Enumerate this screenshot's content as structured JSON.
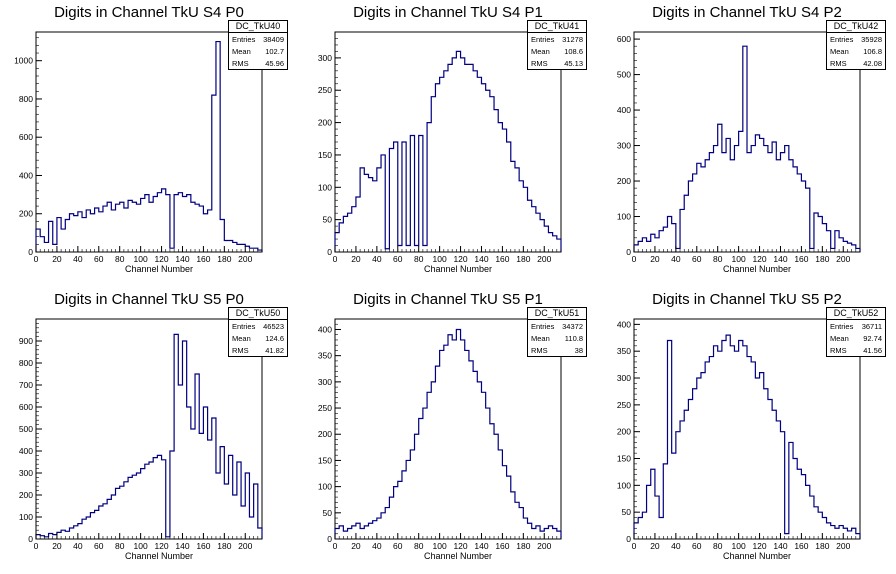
{
  "chart_data": [
    {
      "type": "area",
      "title": "Digits in Channel TkU S4 P0",
      "xlabel": "Channel Number",
      "ylabel": "",
      "histogram_name": "DC_TkU40",
      "stats": {
        "Entries": "38409",
        "Mean": "102.7",
        "RMS": "45.96"
      },
      "xlim": [
        0,
        216
      ],
      "ylim": [
        0,
        1150
      ],
      "yticks": [
        0,
        200,
        400,
        600,
        800,
        1000
      ],
      "xticks": [
        0,
        20,
        40,
        60,
        80,
        100,
        120,
        140,
        160,
        180,
        200
      ],
      "x": [
        0,
        4,
        8,
        12,
        16,
        20,
        24,
        28,
        32,
        36,
        40,
        44,
        48,
        52,
        56,
        60,
        64,
        68,
        72,
        76,
        80,
        84,
        88,
        92,
        96,
        100,
        104,
        108,
        112,
        116,
        120,
        124,
        128,
        132,
        136,
        140,
        144,
        148,
        152,
        156,
        160,
        164,
        168,
        172,
        176,
        180,
        184,
        188,
        192,
        196,
        200,
        204,
        208,
        212
      ],
      "values": [
        120,
        80,
        50,
        160,
        40,
        180,
        120,
        170,
        200,
        190,
        210,
        180,
        220,
        200,
        230,
        210,
        240,
        260,
        220,
        250,
        260,
        230,
        270,
        260,
        250,
        280,
        300,
        260,
        290,
        310,
        330,
        300,
        20,
        300,
        310,
        290,
        300,
        260,
        250,
        240,
        200,
        220,
        820,
        1100,
        170,
        60,
        60,
        50,
        40,
        40,
        30,
        20,
        20,
        10
      ],
      "color": "#000080"
    },
    {
      "type": "area",
      "title": "Digits in Channel TkU S4 P1",
      "xlabel": "Channel Number",
      "ylabel": "",
      "histogram_name": "DC_TkU41",
      "stats": {
        "Entries": "31278",
        "Mean": "108.6",
        "RMS": "45.13"
      },
      "xlim": [
        0,
        216
      ],
      "ylim": [
        0,
        340
      ],
      "yticks": [
        0,
        50,
        100,
        150,
        200,
        250,
        300
      ],
      "xticks": [
        0,
        20,
        40,
        60,
        80,
        100,
        120,
        140,
        160,
        180,
        200
      ],
      "x": [
        0,
        4,
        8,
        12,
        16,
        20,
        24,
        28,
        32,
        36,
        40,
        44,
        48,
        52,
        56,
        60,
        64,
        68,
        72,
        76,
        80,
        84,
        88,
        92,
        96,
        100,
        104,
        108,
        112,
        116,
        120,
        124,
        128,
        132,
        136,
        140,
        144,
        148,
        152,
        156,
        160,
        164,
        168,
        172,
        176,
        180,
        184,
        188,
        192,
        196,
        200,
        204,
        208,
        212
      ],
      "values": [
        30,
        45,
        55,
        60,
        70,
        85,
        130,
        120,
        115,
        110,
        130,
        150,
        5,
        160,
        170,
        10,
        170,
        10,
        180,
        10,
        180,
        10,
        200,
        240,
        260,
        270,
        280,
        290,
        300,
        310,
        300,
        290,
        290,
        280,
        270,
        260,
        250,
        240,
        220,
        200,
        190,
        170,
        140,
        130,
        110,
        100,
        80,
        70,
        60,
        50,
        40,
        30,
        25,
        20
      ],
      "color": "#000080"
    },
    {
      "type": "area",
      "title": "Digits in Channel TkU S4 P2",
      "xlabel": "Channel Number",
      "ylabel": "",
      "histogram_name": "DC_TkU42",
      "stats": {
        "Entries": "35928",
        "Mean": "106.8",
        "RMS": "42.08"
      },
      "xlim": [
        0,
        216
      ],
      "ylim": [
        0,
        620
      ],
      "yticks": [
        0,
        100,
        200,
        300,
        400,
        500,
        600
      ],
      "xticks": [
        0,
        20,
        40,
        60,
        80,
        100,
        120,
        140,
        160,
        180,
        200
      ],
      "x": [
        0,
        4,
        8,
        12,
        16,
        20,
        24,
        28,
        32,
        36,
        40,
        44,
        48,
        52,
        56,
        60,
        64,
        68,
        72,
        76,
        80,
        84,
        88,
        92,
        96,
        100,
        104,
        108,
        112,
        116,
        120,
        124,
        128,
        132,
        136,
        140,
        144,
        148,
        152,
        156,
        160,
        164,
        168,
        172,
        176,
        180,
        184,
        188,
        192,
        196,
        200,
        204,
        208,
        212
      ],
      "values": [
        20,
        30,
        40,
        30,
        50,
        40,
        60,
        70,
        100,
        80,
        10,
        120,
        160,
        200,
        220,
        250,
        240,
        260,
        280,
        300,
        360,
        280,
        320,
        260,
        300,
        340,
        580,
        280,
        300,
        330,
        320,
        300,
        280,
        310,
        260,
        280,
        300,
        260,
        240,
        220,
        200,
        180,
        10,
        110,
        100,
        80,
        60,
        10,
        60,
        40,
        30,
        25,
        20,
        10
      ],
      "color": "#000080"
    },
    {
      "type": "area",
      "title": "Digits in Channel TkU S5 P0",
      "xlabel": "Channel Number",
      "ylabel": "",
      "histogram_name": "DC_TkU50",
      "stats": {
        "Entries": "46523",
        "Mean": "124.6",
        "RMS": "41.82"
      },
      "xlim": [
        0,
        216
      ],
      "ylim": [
        0,
        1000
      ],
      "yticks": [
        0,
        100,
        200,
        300,
        400,
        500,
        600,
        700,
        800,
        900
      ],
      "xticks": [
        0,
        20,
        40,
        60,
        80,
        100,
        120,
        140,
        160,
        180,
        200
      ],
      "x": [
        0,
        4,
        8,
        12,
        16,
        20,
        24,
        28,
        32,
        36,
        40,
        44,
        48,
        52,
        56,
        60,
        64,
        68,
        72,
        76,
        80,
        84,
        88,
        92,
        96,
        100,
        104,
        108,
        112,
        116,
        120,
        124,
        128,
        132,
        136,
        140,
        144,
        148,
        152,
        156,
        160,
        164,
        168,
        172,
        176,
        180,
        184,
        188,
        192,
        196,
        200,
        204,
        208,
        212
      ],
      "values": [
        20,
        15,
        10,
        25,
        20,
        30,
        40,
        35,
        50,
        60,
        70,
        90,
        100,
        120,
        130,
        150,
        160,
        180,
        200,
        230,
        240,
        260,
        280,
        290,
        300,
        320,
        340,
        350,
        370,
        380,
        360,
        10,
        400,
        930,
        700,
        900,
        600,
        500,
        750,
        480,
        600,
        450,
        550,
        300,
        420,
        250,
        380,
        200,
        350,
        150,
        300,
        100,
        250,
        50
      ],
      "color": "#000080"
    },
    {
      "type": "area",
      "title": "Digits in Channel TkU S5 P1",
      "xlabel": "Channel Number",
      "ylabel": "",
      "histogram_name": "DC_TkU51",
      "stats": {
        "Entries": "34372",
        "Mean": "110.8",
        "RMS": "38"
      },
      "xlim": [
        0,
        216
      ],
      "ylim": [
        0,
        420
      ],
      "yticks": [
        0,
        50,
        100,
        150,
        200,
        250,
        300,
        350,
        400
      ],
      "xticks": [
        0,
        20,
        40,
        60,
        80,
        100,
        120,
        140,
        160,
        180,
        200
      ],
      "x": [
        0,
        4,
        8,
        12,
        16,
        20,
        24,
        28,
        32,
        36,
        40,
        44,
        48,
        52,
        56,
        60,
        64,
        68,
        72,
        76,
        80,
        84,
        88,
        92,
        96,
        100,
        104,
        108,
        112,
        116,
        120,
        124,
        128,
        132,
        136,
        140,
        144,
        148,
        152,
        156,
        160,
        164,
        168,
        172,
        176,
        180,
        184,
        188,
        192,
        196,
        200,
        204,
        208,
        212
      ],
      "values": [
        20,
        25,
        15,
        20,
        25,
        30,
        20,
        25,
        30,
        35,
        40,
        50,
        60,
        80,
        100,
        110,
        130,
        150,
        170,
        200,
        230,
        250,
        280,
        300,
        330,
        360,
        370,
        390,
        380,
        400,
        380,
        360,
        340,
        320,
        300,
        280,
        250,
        220,
        200,
        170,
        140,
        120,
        90,
        70,
        60,
        40,
        30,
        20,
        25,
        15,
        20,
        25,
        20,
        15
      ],
      "color": "#000080"
    },
    {
      "type": "area",
      "title": "Digits in Channel TkU S5 P2",
      "xlabel": "Channel Number",
      "ylabel": "",
      "histogram_name": "DC_TkU52",
      "stats": {
        "Entries": "36711",
        "Mean": "92.74",
        "RMS": "41.56"
      },
      "xlim": [
        0,
        216
      ],
      "ylim": [
        0,
        410
      ],
      "yticks": [
        0,
        50,
        100,
        150,
        200,
        250,
        300,
        350,
        400
      ],
      "xticks": [
        0,
        20,
        40,
        60,
        80,
        100,
        120,
        140,
        160,
        180,
        200
      ],
      "x": [
        0,
        4,
        8,
        12,
        16,
        20,
        24,
        28,
        32,
        36,
        40,
        44,
        48,
        52,
        56,
        60,
        64,
        68,
        72,
        76,
        80,
        84,
        88,
        92,
        96,
        100,
        104,
        108,
        112,
        116,
        120,
        124,
        128,
        132,
        136,
        140,
        144,
        148,
        152,
        156,
        160,
        164,
        168,
        172,
        176,
        180,
        184,
        188,
        192,
        196,
        200,
        204,
        208,
        212
      ],
      "values": [
        30,
        40,
        50,
        100,
        130,
        80,
        40,
        140,
        370,
        160,
        200,
        220,
        240,
        260,
        280,
        300,
        310,
        330,
        340,
        360,
        350,
        370,
        380,
        360,
        350,
        370,
        360,
        340,
        330,
        300,
        310,
        280,
        260,
        240,
        220,
        200,
        10,
        180,
        150,
        130,
        120,
        100,
        80,
        60,
        50,
        40,
        30,
        25,
        20,
        25,
        20,
        15,
        20,
        10
      ],
      "color": "#000080"
    }
  ]
}
